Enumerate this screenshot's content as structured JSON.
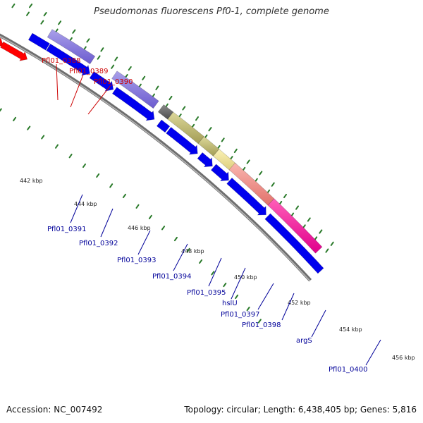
{
  "title": "Pseudomonas fluorescens Pf0-1, complete genome",
  "accession": "Accession: NC_007492",
  "summary": "Topology: circular; Length: 6,438,405 bp; Genes: 5,816",
  "colors": {
    "backbone": "#8a8a8a",
    "tick": "#2a7a2a",
    "gene_blue": "#0000ee",
    "gene_red": "#ff0000",
    "label_blue": "#000099",
    "label_red": "#cc0000"
  },
  "tick_labels": [
    "442 kbp",
    "444 kbp",
    "446 kbp",
    "448 kbp",
    "450 kbp",
    "452 kbp",
    "454 kbp",
    "456 kbp"
  ],
  "gene_labels": [
    "Pfl01_0388",
    "Pfl01_0389",
    "Pfl01_0390",
    "Pfl01_0391",
    "Pfl01_0392",
    "Pfl01_0393",
    "Pfl01_0394",
    "Pfl01_0395",
    "hslU",
    "Pfl01_0397",
    "Pfl01_0398",
    "argS",
    "Pfl01_0400"
  ]
}
